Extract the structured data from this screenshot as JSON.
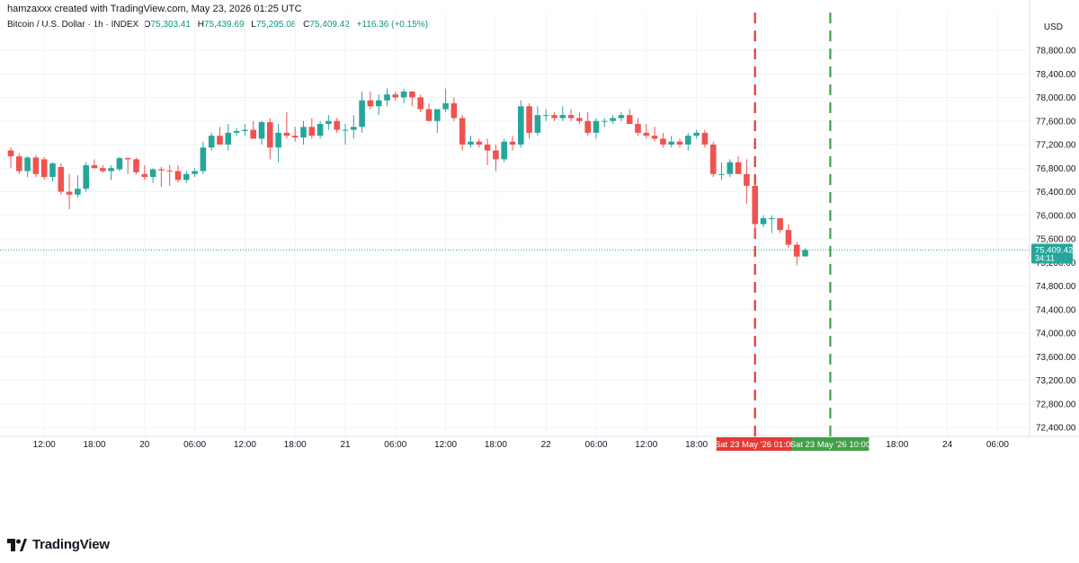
{
  "header": {
    "credit": "hamzaxxx created with TradingView.com, May 23, 2026 01:25 UTC",
    "symbol": "Bitcoin / U.S. Dollar · 1h · INDEX",
    "open_label": "O",
    "open": "75,303.41",
    "high_label": "H",
    "high": "75,439.69",
    "low_label": "L",
    "low": "75,295.08",
    "close_label": "C",
    "close": "75,409.42",
    "change": "+116.36 (+0.15%)"
  },
  "currency": "USD",
  "footer": {
    "brand": "TradingView",
    "logo_icon": "tradingview-logo-icon"
  },
  "colors": {
    "up": "#26a69a",
    "down": "#ef5350",
    "grid": "#f0f3fa",
    "red_line": "#e53935",
    "green_line": "#43a047"
  },
  "chart_data": {
    "type": "candlestick",
    "ylim": [
      72200,
      79200
    ],
    "grid": true,
    "y_ticks": [
      "78,800.00",
      "78,400.00",
      "78,000.00",
      "77,600.00",
      "77,200.00",
      "76,800.00",
      "76,400.00",
      "76,000.00",
      "75,600.00",
      "75,200.00",
      "74,800.00",
      "74,400.00",
      "74,000.00",
      "73,600.00",
      "73,200.00",
      "72,800.00",
      "72,400.00"
    ],
    "y_tick_values": [
      78800,
      78400,
      78000,
      77600,
      77200,
      76800,
      76400,
      76000,
      75600,
      75200,
      74800,
      74400,
      74000,
      73600,
      73200,
      72800,
      72400
    ],
    "x_ticks": [
      {
        "label": "12:00",
        "bar": 4
      },
      {
        "label": "18:00",
        "bar": 10
      },
      {
        "label": "20",
        "bar": 16
      },
      {
        "label": "06:00",
        "bar": 22
      },
      {
        "label": "12:00",
        "bar": 28
      },
      {
        "label": "18:00",
        "bar": 34
      },
      {
        "label": "21",
        "bar": 40
      },
      {
        "label": "06:00",
        "bar": 46
      },
      {
        "label": "12:00",
        "bar": 52
      },
      {
        "label": "18:00",
        "bar": 58
      },
      {
        "label": "22",
        "bar": 64
      },
      {
        "label": "06:00",
        "bar": 70
      },
      {
        "label": "12:00",
        "bar": 76
      },
      {
        "label": "18:00",
        "bar": 82
      },
      {
        "label": "18:00",
        "bar": 106
      },
      {
        "label": "24",
        "bar": 112
      },
      {
        "label": "06:00",
        "bar": 118
      }
    ],
    "last_price": {
      "value": 75409.42,
      "label": "75,409.42",
      "countdown": "34:11"
    },
    "markers": [
      {
        "bar": 89,
        "label": "Sat 23 May '26   01:00",
        "color": "#e53935"
      },
      {
        "bar": 98,
        "label": "Sat 23 May '26   10:00",
        "color": "#43a047"
      }
    ],
    "candles": [
      {
        "o": 77100,
        "h": 77150,
        "l": 76800,
        "c": 77000
      },
      {
        "o": 77000,
        "h": 77050,
        "l": 76700,
        "c": 76750
      },
      {
        "o": 76750,
        "h": 77000,
        "l": 76650,
        "c": 76980
      },
      {
        "o": 76980,
        "h": 77020,
        "l": 76650,
        "c": 76700
      },
      {
        "o": 76950,
        "h": 76990,
        "l": 76600,
        "c": 76650
      },
      {
        "o": 76650,
        "h": 76900,
        "l": 76580,
        "c": 76880
      },
      {
        "o": 76820,
        "h": 76880,
        "l": 76350,
        "c": 76400
      },
      {
        "o": 76400,
        "h": 76700,
        "l": 76100,
        "c": 76350
      },
      {
        "o": 76350,
        "h": 76680,
        "l": 76300,
        "c": 76450
      },
      {
        "o": 76450,
        "h": 76900,
        "l": 76400,
        "c": 76850
      },
      {
        "o": 76850,
        "h": 76950,
        "l": 76800,
        "c": 76800
      },
      {
        "o": 76800,
        "h": 76850,
        "l": 76720,
        "c": 76750
      },
      {
        "o": 76750,
        "h": 76850,
        "l": 76600,
        "c": 76800
      },
      {
        "o": 76780,
        "h": 76990,
        "l": 76750,
        "c": 76970
      },
      {
        "o": 76970,
        "h": 76990,
        "l": 76700,
        "c": 76950
      },
      {
        "o": 76950,
        "h": 76980,
        "l": 76700,
        "c": 76730
      },
      {
        "o": 76700,
        "h": 76850,
        "l": 76600,
        "c": 76650
      },
      {
        "o": 76650,
        "h": 76800,
        "l": 76550,
        "c": 76780
      },
      {
        "o": 76780,
        "h": 76820,
        "l": 76480,
        "c": 76760
      },
      {
        "o": 76760,
        "h": 76850,
        "l": 76500,
        "c": 76750
      },
      {
        "o": 76750,
        "h": 76850,
        "l": 76550,
        "c": 76600
      },
      {
        "o": 76600,
        "h": 76750,
        "l": 76550,
        "c": 76700
      },
      {
        "o": 76700,
        "h": 76800,
        "l": 76650,
        "c": 76750
      },
      {
        "o": 76750,
        "h": 77250,
        "l": 76700,
        "c": 77150
      },
      {
        "o": 77150,
        "h": 77400,
        "l": 77100,
        "c": 77350
      },
      {
        "o": 77350,
        "h": 77500,
        "l": 77200,
        "c": 77200
      },
      {
        "o": 77200,
        "h": 77550,
        "l": 77100,
        "c": 77400
      },
      {
        "o": 77400,
        "h": 77480,
        "l": 77350,
        "c": 77430
      },
      {
        "o": 77430,
        "h": 77550,
        "l": 77350,
        "c": 77450
      },
      {
        "o": 77450,
        "h": 77600,
        "l": 77300,
        "c": 77300
      },
      {
        "o": 77300,
        "h": 77600,
        "l": 77200,
        "c": 77580
      },
      {
        "o": 77580,
        "h": 77650,
        "l": 76950,
        "c": 77150
      },
      {
        "o": 77150,
        "h": 77550,
        "l": 76900,
        "c": 77400
      },
      {
        "o": 77400,
        "h": 77750,
        "l": 77300,
        "c": 77350
      },
      {
        "o": 77350,
        "h": 77500,
        "l": 77250,
        "c": 77320
      },
      {
        "o": 77320,
        "h": 77600,
        "l": 77200,
        "c": 77500
      },
      {
        "o": 77500,
        "h": 77650,
        "l": 77300,
        "c": 77350
      },
      {
        "o": 77350,
        "h": 77600,
        "l": 77300,
        "c": 77550
      },
      {
        "o": 77550,
        "h": 77700,
        "l": 77450,
        "c": 77600
      },
      {
        "o": 77600,
        "h": 77650,
        "l": 77400,
        "c": 77450
      },
      {
        "o": 77450,
        "h": 77550,
        "l": 77200,
        "c": 77450
      },
      {
        "o": 77450,
        "h": 77700,
        "l": 77300,
        "c": 77500
      },
      {
        "o": 77500,
        "h": 78100,
        "l": 77400,
        "c": 77950
      },
      {
        "o": 77950,
        "h": 78100,
        "l": 77800,
        "c": 77850
      },
      {
        "o": 77850,
        "h": 78050,
        "l": 77700,
        "c": 77950
      },
      {
        "o": 77950,
        "h": 78150,
        "l": 77850,
        "c": 78050
      },
      {
        "o": 78050,
        "h": 78100,
        "l": 77950,
        "c": 78000
      },
      {
        "o": 78000,
        "h": 78150,
        "l": 77900,
        "c": 78100
      },
      {
        "o": 78100,
        "h": 78100,
        "l": 77850,
        "c": 78000
      },
      {
        "o": 78000,
        "h": 78050,
        "l": 77750,
        "c": 77800
      },
      {
        "o": 77800,
        "h": 77900,
        "l": 77600,
        "c": 77600
      },
      {
        "o": 77600,
        "h": 77800,
        "l": 77400,
        "c": 77800
      },
      {
        "o": 77800,
        "h": 78150,
        "l": 77750,
        "c": 77900
      },
      {
        "o": 77900,
        "h": 78000,
        "l": 77600,
        "c": 77650
      },
      {
        "o": 77650,
        "h": 77700,
        "l": 77100,
        "c": 77200
      },
      {
        "o": 77200,
        "h": 77350,
        "l": 77150,
        "c": 77250
      },
      {
        "o": 77250,
        "h": 77300,
        "l": 77150,
        "c": 77200
      },
      {
        "o": 77200,
        "h": 77300,
        "l": 76850,
        "c": 77100
      },
      {
        "o": 77100,
        "h": 77200,
        "l": 76750,
        "c": 76950
      },
      {
        "o": 76950,
        "h": 77300,
        "l": 76900,
        "c": 77250
      },
      {
        "o": 77250,
        "h": 77350,
        "l": 77100,
        "c": 77200
      },
      {
        "o": 77200,
        "h": 77950,
        "l": 77150,
        "c": 77850
      },
      {
        "o": 77850,
        "h": 77900,
        "l": 77300,
        "c": 77400
      },
      {
        "o": 77400,
        "h": 77850,
        "l": 77350,
        "c": 77700
      },
      {
        "o": 77700,
        "h": 77800,
        "l": 77600,
        "c": 77700
      },
      {
        "o": 77700,
        "h": 77750,
        "l": 77600,
        "c": 77650
      },
      {
        "o": 77650,
        "h": 77850,
        "l": 77600,
        "c": 77700
      },
      {
        "o": 77700,
        "h": 77800,
        "l": 77600,
        "c": 77650
      },
      {
        "o": 77650,
        "h": 77750,
        "l": 77550,
        "c": 77600
      },
      {
        "o": 77600,
        "h": 77750,
        "l": 77350,
        "c": 77400
      },
      {
        "o": 77400,
        "h": 77650,
        "l": 77300,
        "c": 77600
      },
      {
        "o": 77600,
        "h": 77650,
        "l": 77500,
        "c": 77600
      },
      {
        "o": 77600,
        "h": 77700,
        "l": 77550,
        "c": 77650
      },
      {
        "o": 77650,
        "h": 77750,
        "l": 77600,
        "c": 77700
      },
      {
        "o": 77700,
        "h": 77800,
        "l": 77550,
        "c": 77550
      },
      {
        "o": 77550,
        "h": 77650,
        "l": 77350,
        "c": 77400
      },
      {
        "o": 77400,
        "h": 77550,
        "l": 77300,
        "c": 77350
      },
      {
        "o": 77350,
        "h": 77500,
        "l": 77250,
        "c": 77300
      },
      {
        "o": 77300,
        "h": 77400,
        "l": 77150,
        "c": 77200
      },
      {
        "o": 77200,
        "h": 77350,
        "l": 77150,
        "c": 77250
      },
      {
        "o": 77250,
        "h": 77300,
        "l": 77150,
        "c": 77200
      },
      {
        "o": 77200,
        "h": 77400,
        "l": 77100,
        "c": 77350
      },
      {
        "o": 77350,
        "h": 77450,
        "l": 77300,
        "c": 77400
      },
      {
        "o": 77400,
        "h": 77450,
        "l": 77150,
        "c": 77200
      },
      {
        "o": 77200,
        "h": 77250,
        "l": 76650,
        "c": 76700
      },
      {
        "o": 76700,
        "h": 76900,
        "l": 76600,
        "c": 76700
      },
      {
        "o": 76700,
        "h": 76950,
        "l": 76650,
        "c": 76900
      },
      {
        "o": 76900,
        "h": 77000,
        "l": 76700,
        "c": 76700
      },
      {
        "o": 76700,
        "h": 76950,
        "l": 76200,
        "c": 76500
      },
      {
        "o": 76500,
        "h": 76550,
        "l": 75600,
        "c": 75850
      },
      {
        "o": 75850,
        "h": 76000,
        "l": 75800,
        "c": 75950
      },
      {
        "o": 75950,
        "h": 76000,
        "l": 75700,
        "c": 75950
      },
      {
        "o": 75950,
        "h": 75950,
        "l": 75700,
        "c": 75750
      },
      {
        "o": 75750,
        "h": 75850,
        "l": 75450,
        "c": 75500
      },
      {
        "o": 75500,
        "h": 75550,
        "l": 75150,
        "c": 75300
      },
      {
        "o": 75303.41,
        "h": 75439.69,
        "l": 75295.08,
        "c": 75409.42
      }
    ]
  }
}
